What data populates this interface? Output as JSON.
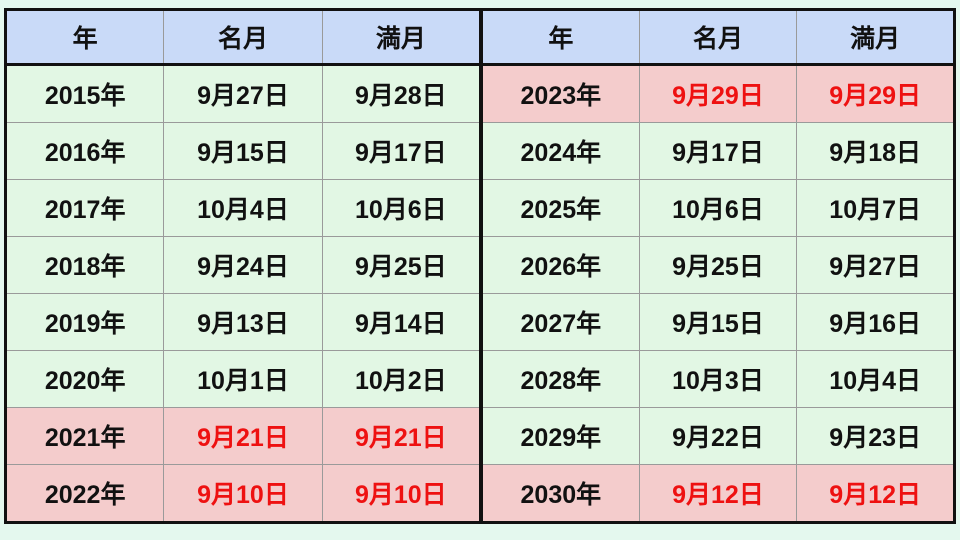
{
  "headers": [
    "年",
    "名月",
    "満月"
  ],
  "colors": {
    "header": "#c9daf8",
    "normal_row": "#e2f7e4",
    "highlight_row": "#f4cccc",
    "highlight_text": "#ee1111"
  },
  "left_rows": [
    {
      "year": "2015年",
      "meigetsu": "9月27日",
      "mangetsu": "9月28日",
      "highlight": false
    },
    {
      "year": "2016年",
      "meigetsu": "9月15日",
      "mangetsu": "9月17日",
      "highlight": false
    },
    {
      "year": "2017年",
      "meigetsu": "10月4日",
      "mangetsu": "10月6日",
      "highlight": false
    },
    {
      "year": "2018年",
      "meigetsu": "9月24日",
      "mangetsu": "9月25日",
      "highlight": false
    },
    {
      "year": "2019年",
      "meigetsu": "9月13日",
      "mangetsu": "9月14日",
      "highlight": false
    },
    {
      "year": "2020年",
      "meigetsu": "10月1日",
      "mangetsu": "10月2日",
      "highlight": false
    },
    {
      "year": "2021年",
      "meigetsu": "9月21日",
      "mangetsu": "9月21日",
      "highlight": true
    },
    {
      "year": "2022年",
      "meigetsu": "9月10日",
      "mangetsu": "9月10日",
      "highlight": true
    }
  ],
  "right_rows": [
    {
      "year": "2023年",
      "meigetsu": "9月29日",
      "mangetsu": "9月29日",
      "highlight": true
    },
    {
      "year": "2024年",
      "meigetsu": "9月17日",
      "mangetsu": "9月18日",
      "highlight": false
    },
    {
      "year": "2025年",
      "meigetsu": "10月6日",
      "mangetsu": "10月7日",
      "highlight": false
    },
    {
      "year": "2026年",
      "meigetsu": "9月25日",
      "mangetsu": "9月27日",
      "highlight": false
    },
    {
      "year": "2027年",
      "meigetsu": "9月15日",
      "mangetsu": "9月16日",
      "highlight": false
    },
    {
      "year": "2028年",
      "meigetsu": "10月3日",
      "mangetsu": "10月4日",
      "highlight": false
    },
    {
      "year": "2029年",
      "meigetsu": "9月22日",
      "mangetsu": "9月23日",
      "highlight": false
    },
    {
      "year": "2030年",
      "meigetsu": "9月12日",
      "mangetsu": "9月12日",
      "highlight": true
    }
  ]
}
